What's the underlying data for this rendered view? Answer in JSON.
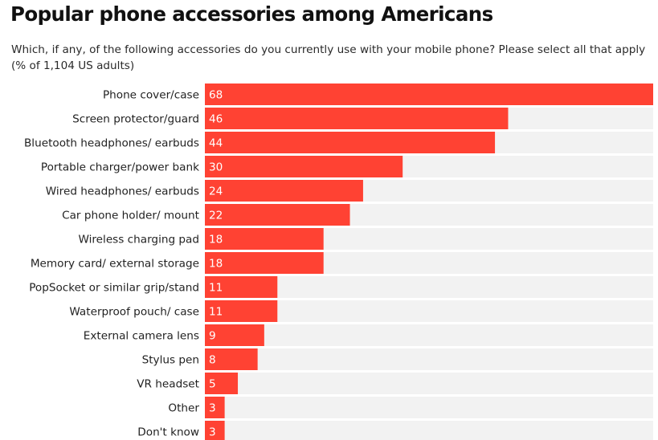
{
  "chart_data": {
    "type": "bar",
    "orientation": "horizontal",
    "title": "Popular phone accessories among Americans",
    "subtitle": "Which, if any, of the following accessories do you currently use with your mobile phone? Please select all that apply (% of 1,104 US adults)",
    "categories": [
      "Phone cover/case",
      "Screen protector/guard",
      "Bluetooth headphones/ earbuds",
      "Portable charger/power bank",
      "Wired headphones/ earbuds",
      "Car phone holder/ mount",
      "Wireless charging pad",
      "Memory card/ external storage",
      "PopSocket or similar grip/stand",
      "Waterproof pouch/ case",
      "External camera lens",
      "Stylus pen",
      "VR headset",
      "Other",
      "Don't know"
    ],
    "values": [
      68,
      46,
      44,
      30,
      24,
      22,
      18,
      18,
      11,
      11,
      9,
      8,
      5,
      3,
      3
    ],
    "xlim": [
      0,
      68
    ],
    "grid": false,
    "legend": "none",
    "colors": {
      "bar": "#ff4233",
      "track": "#f2f2f2",
      "value_text": "#ffffff"
    }
  }
}
